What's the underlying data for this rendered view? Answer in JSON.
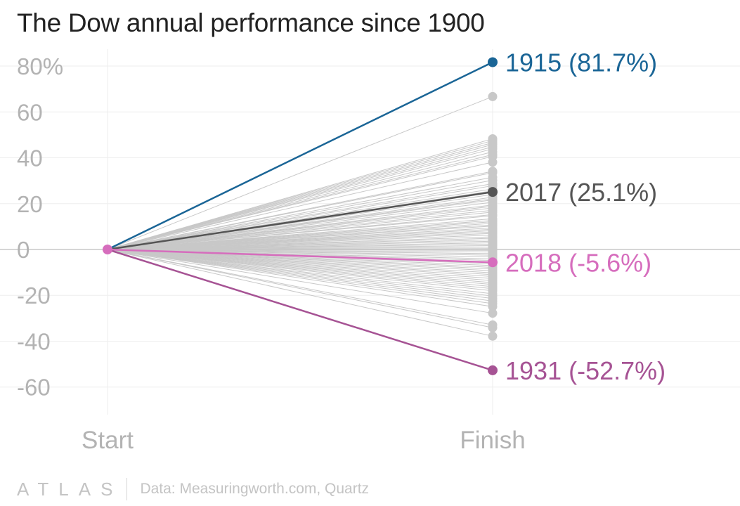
{
  "chart_data": {
    "type": "line",
    "title": "The Dow annual performance since 1900",
    "categories": [
      "Start",
      "Finish"
    ],
    "y_tick_labels": [
      "80%",
      "60",
      "40",
      "20",
      "0",
      "-20",
      "-40",
      "-60"
    ],
    "y_ticks": [
      80,
      60,
      40,
      20,
      0,
      -20,
      -40,
      -60
    ],
    "ylim": [
      -70,
      84
    ],
    "grid": true,
    "highlighted": [
      {
        "label": "1915 (81.7%)",
        "value": 81.7,
        "color": "#1a6596"
      },
      {
        "label": "2017 (25.1%)",
        "value": 25.1,
        "color": "#555555"
      },
      {
        "label": "2018 (-5.6%)",
        "value": -5.6,
        "color": "#d66dbd"
      },
      {
        "label": "1931 (-52.7%)",
        "value": -52.7,
        "color": "#a65394"
      }
    ],
    "other_years_values": [
      66.7,
      48.3,
      47.5,
      46.6,
      45.8,
      44.8,
      43.9,
      42.6,
      41.4,
      40.6,
      38.1,
      34.1,
      33.5,
      31.5,
      30.2,
      28.7,
      27.8,
      26.4,
      25.6,
      24.0,
      22.8,
      22.1,
      21.6,
      20.6,
      19.4,
      18.8,
      18.1,
      17.1,
      16.3,
      15.2,
      14.7,
      13.4,
      12.7,
      12.1,
      11.4,
      10.7,
      10.2,
      9.4,
      8.8,
      8.2,
      7.6,
      7.0,
      6.3,
      5.5,
      4.9,
      4.2,
      3.6,
      2.9,
      2.3,
      1.7,
      1.0,
      0.4,
      -0.4,
      -1.1,
      -1.8,
      -2.5,
      -3.2,
      -4.1,
      -4.8,
      -6.2,
      -7.0,
      -7.8,
      -8.5,
      -9.3,
      -10.2,
      -11.0,
      -11.8,
      -12.7,
      -13.6,
      -14.5,
      -15.3,
      -16.2,
      -17.1,
      -18.0,
      -19.3,
      -20.3,
      -21.4,
      -22.5,
      -23.6,
      -24.9,
      -27.8,
      -32.9,
      -34.1,
      -37.8
    ],
    "other_color": "#c8c8c8"
  },
  "footer": {
    "logo": "ATLAS",
    "source": "Data: Measuringworth.com, Quartz"
  }
}
